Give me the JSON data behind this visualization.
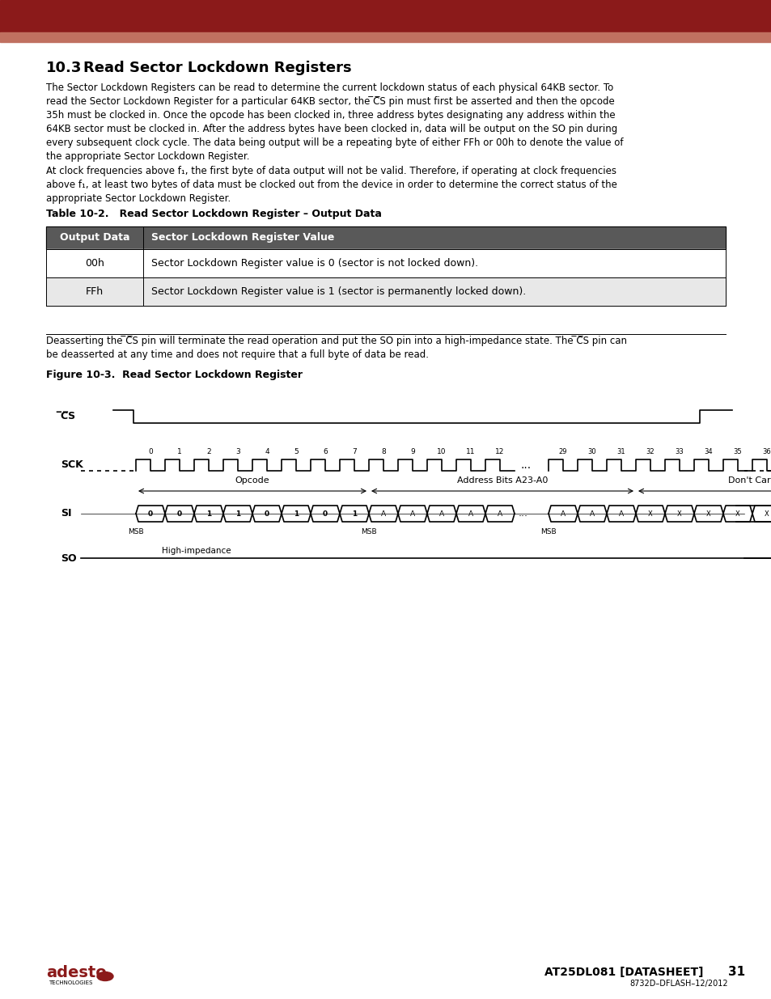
{
  "header_color1": "#8B1A1A",
  "header_color2": "#C07060",
  "bg_color": "#FFFFFF",
  "section_num": "10.3",
  "section_title": "Read Sector Lockdown Registers",
  "table_title": "Table 10-2.   Read Sector Lockdown Register – Output Data",
  "table_header": [
    "Output Data",
    "Sector Lockdown Register Value"
  ],
  "table_rows": [
    [
      "00h",
      "Sector Lockdown Register value is 0 (sector is not locked down)."
    ],
    [
      "FFh",
      "Sector Lockdown Register value is 1 (sector is permanently locked down)."
    ]
  ],
  "table_header_bg": "#595959",
  "table_header_fg": "#FFFFFF",
  "table_row0_bg": "#FFFFFF",
  "table_row1_bg": "#E8E8E8",
  "figure_title": "Figure 10-3.  Read Sector Lockdown Register",
  "footer_doc": "AT25DL081 [DATASHEET]",
  "footer_page": "31",
  "footer_sub": "8732D–DFLASH–12/2012"
}
